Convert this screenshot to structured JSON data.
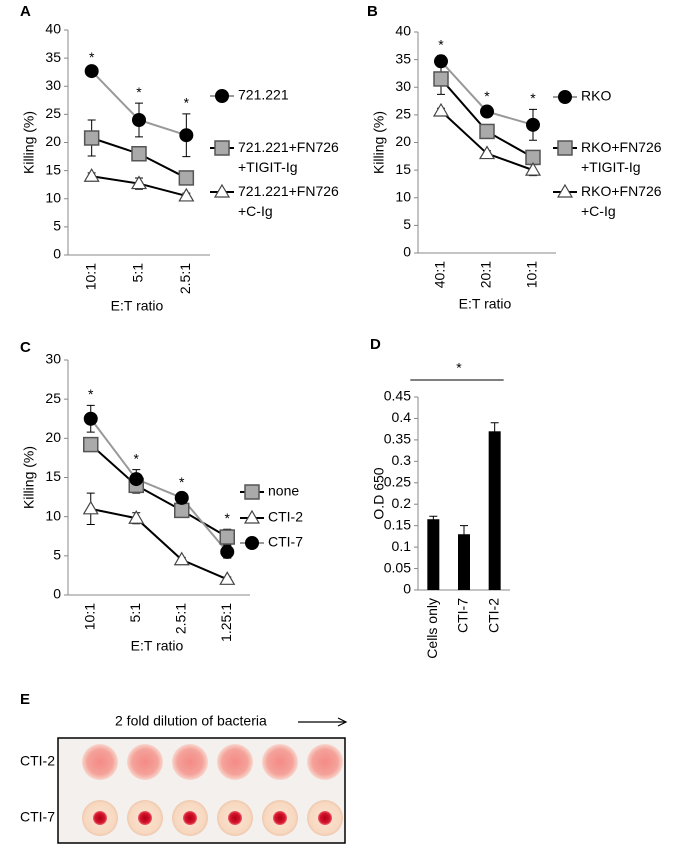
{
  "chart_data": [
    {
      "type": "line",
      "panel": "A",
      "ylabel": "Killing (%)",
      "xlabel": "E:T ratio",
      "categories": [
        "10:1",
        "5:1",
        "2.5:1"
      ],
      "ylim": [
        0,
        40
      ],
      "yticks": [
        0,
        5,
        10,
        15,
        20,
        25,
        30,
        35,
        40
      ],
      "series": [
        {
          "name": "721.221",
          "color": "#999999",
          "marker": "circle",
          "marker_color": "#000000",
          "values": [
            32.7,
            24,
            21.3
          ],
          "errors": [
            0.5,
            3,
            3.8
          ]
        },
        {
          "name": "721.221+FN726 +TIGIT-Ig",
          "color": "#000000",
          "marker": "square",
          "marker_color": "#aaaaaa",
          "values": [
            20.8,
            18,
            13.7
          ],
          "errors": [
            3.2,
            1,
            1
          ]
        },
        {
          "name": "721.221+FN726 +C-Ig",
          "color": "#000000",
          "marker": "triangle",
          "marker_color": "#ffffff",
          "values": [
            14,
            12.7,
            10.5
          ],
          "errors": [
            0.6,
            1,
            0.5
          ]
        }
      ],
      "significance": [
        "*",
        "*",
        "*"
      ]
    },
    {
      "type": "line",
      "panel": "B",
      "ylabel": "Killing (%)",
      "xlabel": "E:T ratio",
      "categories": [
        "40:1",
        "20:1",
        "10:1"
      ],
      "ylim": [
        0,
        40
      ],
      "yticks": [
        0,
        5,
        10,
        15,
        20,
        25,
        30,
        35,
        40
      ],
      "series": [
        {
          "name": "RKO",
          "color": "#999999",
          "marker": "circle",
          "marker_color": "#000000",
          "values": [
            34.7,
            25.6,
            23.2
          ],
          "errors": [
            1,
            0.8,
            2.8
          ]
        },
        {
          "name": "RKO+FN726 +TIGIT-Ig",
          "color": "#000000",
          "marker": "square",
          "marker_color": "#aaaaaa",
          "values": [
            31.5,
            22,
            17.3
          ],
          "errors": [
            2.8,
            1,
            1
          ]
        },
        {
          "name": "RKO+FN726 +C-Ig",
          "color": "#000000",
          "marker": "triangle",
          "marker_color": "#ffffff",
          "values": [
            25.7,
            18,
            15
          ],
          "errors": [
            0.5,
            0.5,
            1
          ]
        }
      ],
      "significance": [
        "*",
        "*",
        "*"
      ]
    },
    {
      "type": "line",
      "panel": "C",
      "ylabel": "Killing (%)",
      "xlabel": "E:T ratio",
      "categories": [
        "10:1",
        "5:1",
        "2.5:1",
        "1.25:1"
      ],
      "ylim": [
        0,
        30
      ],
      "yticks": [
        0,
        5,
        10,
        15,
        20,
        25,
        30
      ],
      "series": [
        {
          "name": "none",
          "color": "#000000",
          "marker": "square",
          "marker_color": "#aaaaaa",
          "values": [
            19.2,
            14,
            10.8,
            7.4
          ],
          "errors": [
            0.5,
            1,
            0.5,
            1
          ]
        },
        {
          "name": "CTI-2",
          "color": "#000000",
          "marker": "triangle",
          "marker_color": "#ffffff",
          "values": [
            11,
            9.8,
            4.5,
            2
          ],
          "errors": [
            2,
            0.7,
            0.3,
            0.3
          ]
        },
        {
          "name": "CTI-7",
          "color": "#999999",
          "marker": "circle",
          "marker_color": "#000000",
          "values": [
            22.5,
            14.8,
            12.4,
            5.5
          ],
          "errors": [
            1.7,
            1.2,
            0.6,
            0.8
          ]
        }
      ],
      "significance": [
        "*",
        "*",
        "*",
        "*"
      ]
    },
    {
      "type": "bar",
      "panel": "D",
      "ylabel": "O.D 650",
      "categories": [
        "Cells only",
        "CTI-7",
        "CTI-2"
      ],
      "values": [
        0.165,
        0.13,
        0.37
      ],
      "errors": [
        0.007,
        0.02,
        0.02
      ],
      "color": "#000000",
      "ylim": [
        0,
        0.45
      ],
      "yticks": [
        0,
        0.05,
        0.1,
        0.15,
        0.2,
        0.25,
        0.3,
        0.35,
        0.4,
        0.45
      ],
      "significance": {
        "text": "*",
        "categories": [
          "Cells only",
          "CTI-2"
        ]
      }
    }
  ],
  "panel_e": {
    "letter": "E",
    "title": "2 fold dilution of bacteria",
    "rows": [
      "CTI-2",
      "CTI-7"
    ]
  }
}
